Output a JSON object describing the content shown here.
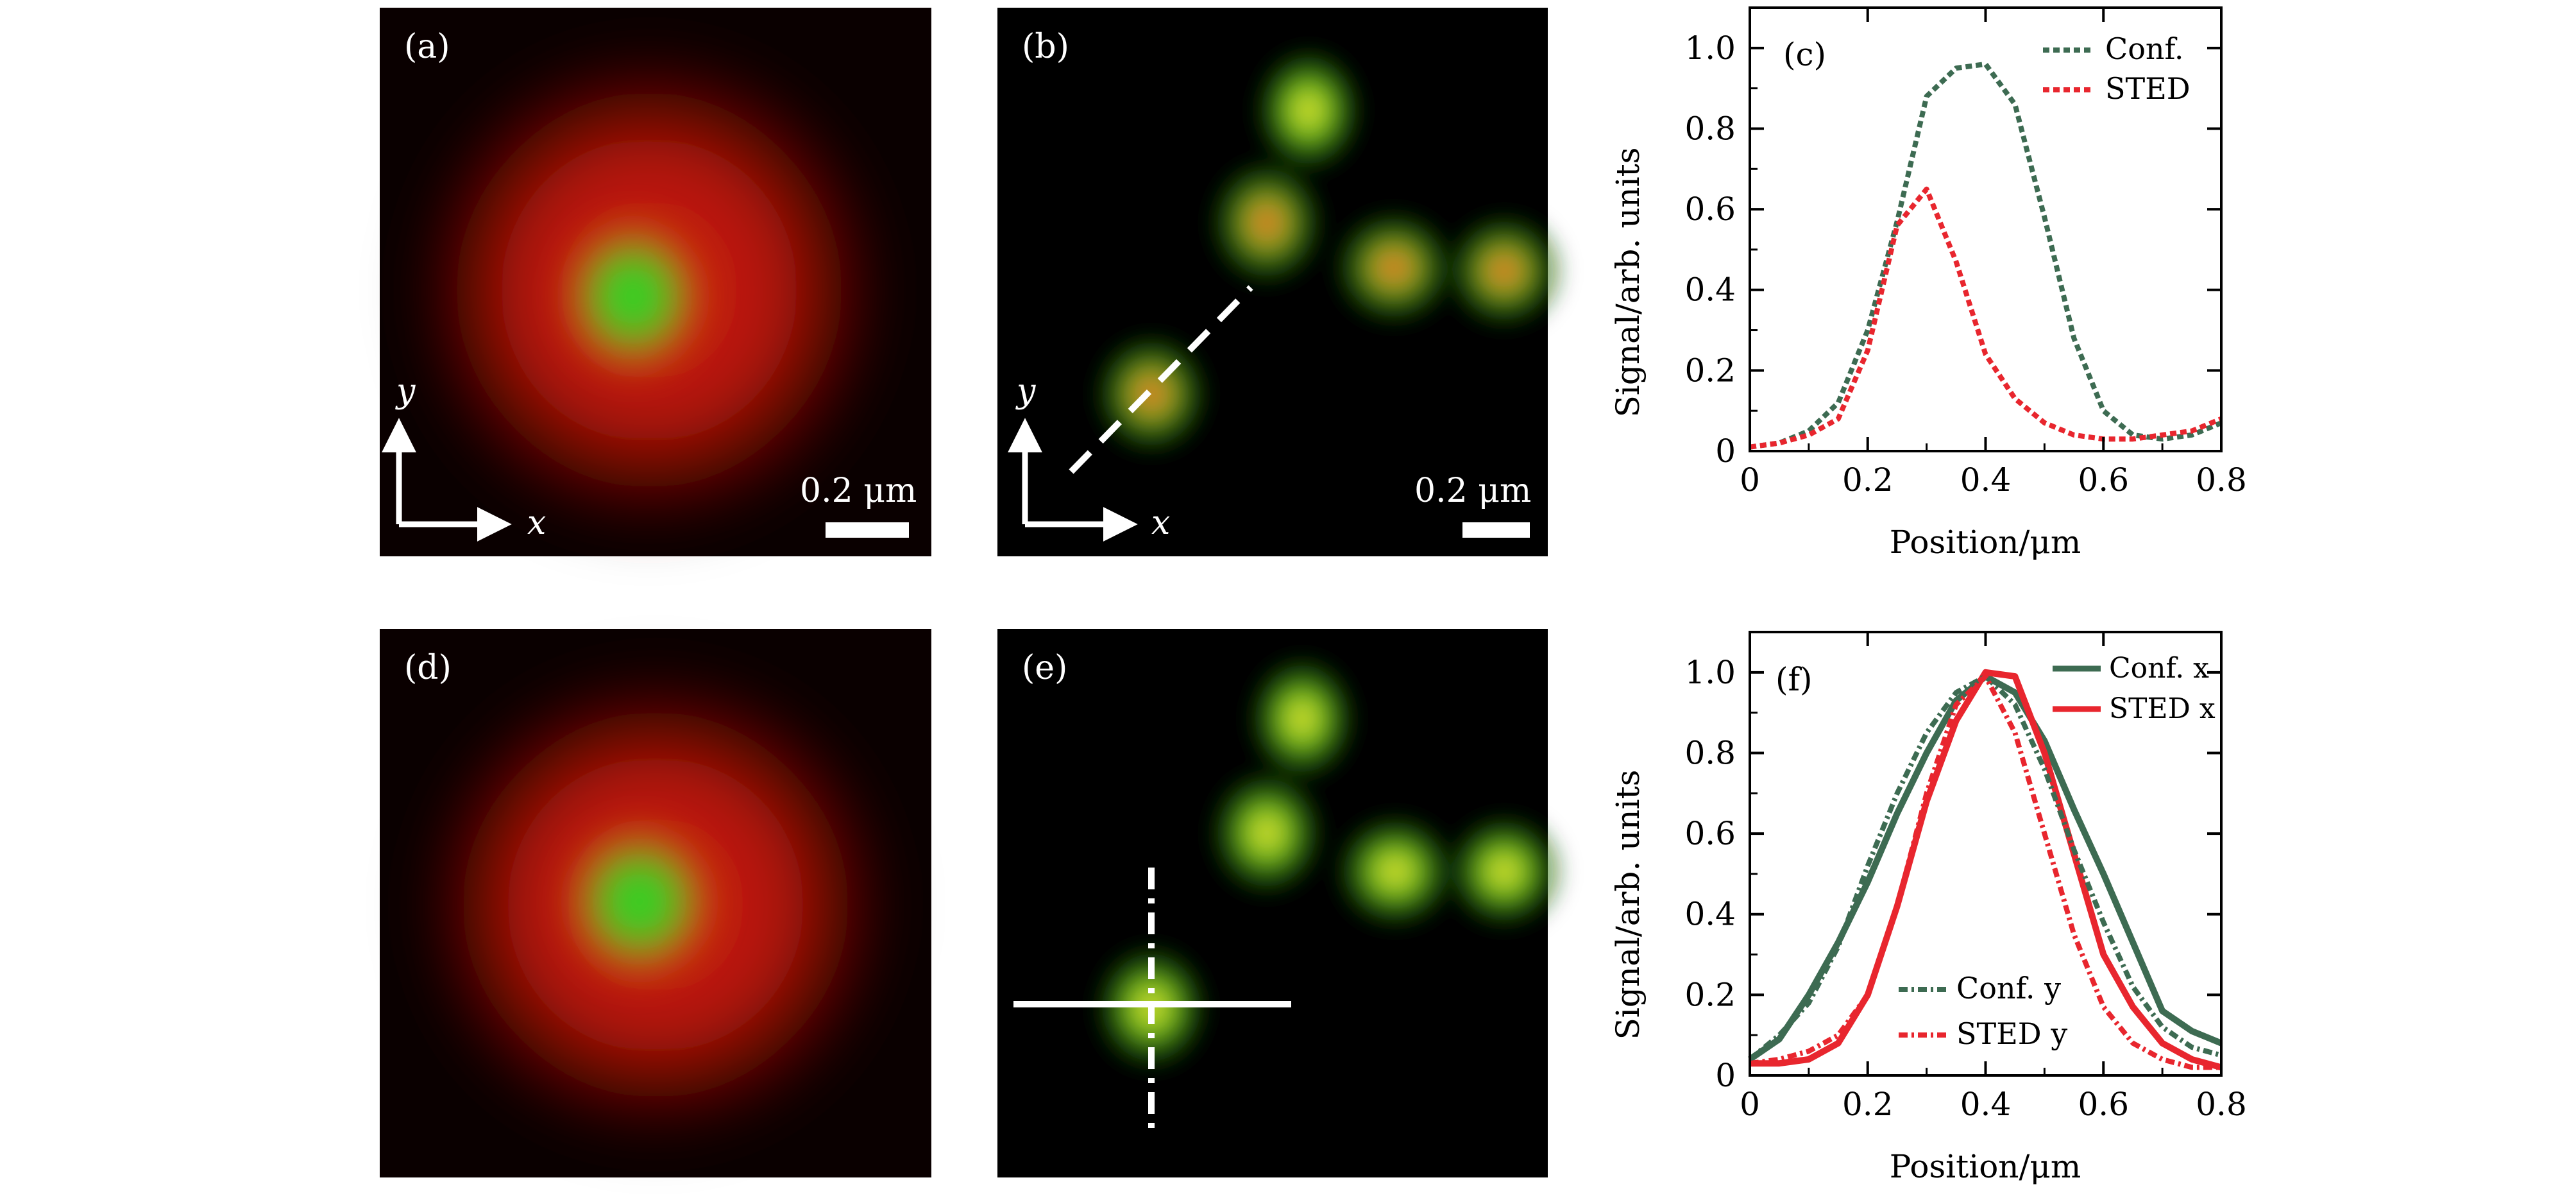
{
  "panels": {
    "a": {
      "label": "(a)",
      "axis_y": "y",
      "axis_x": "x",
      "scalebar": "0.2 μm",
      "green_center": [
        0.45,
        0.56
      ],
      "red_halo": true
    },
    "b": {
      "label": "(b)",
      "axis_y": "y",
      "axis_x": "x",
      "scalebar": "0.2 μm",
      "profile_line": "dashed"
    },
    "d": {
      "label": "(d)",
      "green_center": [
        0.47,
        0.5
      ],
      "red_halo": true
    },
    "e": {
      "label": "(e)",
      "profile_line": "crosshair"
    }
  },
  "chart_data": [
    {
      "panel": "c",
      "type": "line",
      "label": "(c)",
      "xlabel": "Position/μm",
      "ylabel": "Signal/arb. units",
      "xlim": [
        0,
        0.8
      ],
      "ylim": [
        0,
        1.1
      ],
      "xticks": [
        0,
        0.2,
        0.4,
        0.6,
        0.8
      ],
      "yticks": [
        0,
        0.2,
        0.4,
        0.6,
        0.8,
        1.0
      ],
      "xtick_labels": [
        "0",
        "0.2",
        "0.4",
        "0.6",
        "0.8"
      ],
      "ytick_labels": [
        "0",
        "0.2",
        "0.4",
        "0.6",
        "0.8",
        "1.0"
      ],
      "legend_position": "top-right",
      "series": [
        {
          "name": "Conf.",
          "color": "#3d6b52",
          "dash": "dotted",
          "x": [
            0,
            0.05,
            0.1,
            0.15,
            0.2,
            0.25,
            0.3,
            0.35,
            0.4,
            0.45,
            0.5,
            0.55,
            0.6,
            0.65,
            0.7,
            0.75,
            0.8
          ],
          "y": [
            0.01,
            0.02,
            0.05,
            0.12,
            0.3,
            0.57,
            0.88,
            0.95,
            0.96,
            0.86,
            0.58,
            0.28,
            0.1,
            0.04,
            0.03,
            0.04,
            0.07
          ]
        },
        {
          "name": "STED",
          "color": "#e8262e",
          "dash": "dotted",
          "x": [
            0,
            0.05,
            0.1,
            0.15,
            0.2,
            0.25,
            0.3,
            0.35,
            0.4,
            0.45,
            0.5,
            0.55,
            0.6,
            0.65,
            0.7,
            0.75,
            0.8
          ],
          "y": [
            0.01,
            0.02,
            0.04,
            0.08,
            0.25,
            0.56,
            0.65,
            0.47,
            0.24,
            0.13,
            0.07,
            0.04,
            0.03,
            0.03,
            0.04,
            0.05,
            0.08
          ]
        }
      ]
    },
    {
      "panel": "f",
      "type": "line",
      "label": "(f)",
      "xlabel": "Position/μm",
      "ylabel": "Signal/arb. units",
      "xlim": [
        0,
        0.8
      ],
      "ylim": [
        0,
        1.1
      ],
      "xticks": [
        0,
        0.2,
        0.4,
        0.6,
        0.8
      ],
      "yticks": [
        0,
        0.2,
        0.4,
        0.6,
        0.8,
        1.0
      ],
      "xtick_labels": [
        "0",
        "0.2",
        "0.4",
        "0.6",
        "0.8"
      ],
      "ytick_labels": [
        "0",
        "0.2",
        "0.4",
        "0.6",
        "0.8",
        "1.0"
      ],
      "legend_top": [
        {
          "name": "Conf. x",
          "color": "#3d6b52",
          "dash": "solid"
        },
        {
          "name": "STED x",
          "color": "#e8262e",
          "dash": "solid"
        }
      ],
      "legend_bottom": [
        {
          "name": "Conf. y",
          "color": "#3d6b52",
          "dash": "dashdot"
        },
        {
          "name": "STED y",
          "color": "#e8262e",
          "dash": "dashdot"
        }
      ],
      "series": [
        {
          "name": "Conf. x",
          "color": "#3d6b52",
          "dash": "solid",
          "x": [
            0,
            0.05,
            0.1,
            0.15,
            0.2,
            0.25,
            0.3,
            0.35,
            0.4,
            0.45,
            0.5,
            0.55,
            0.6,
            0.65,
            0.7,
            0.75,
            0.8
          ],
          "y": [
            0.04,
            0.09,
            0.2,
            0.33,
            0.48,
            0.65,
            0.8,
            0.93,
            0.99,
            0.95,
            0.83,
            0.66,
            0.5,
            0.33,
            0.16,
            0.11,
            0.08
          ]
        },
        {
          "name": "STED x",
          "color": "#e8262e",
          "dash": "solid",
          "x": [
            0,
            0.05,
            0.1,
            0.15,
            0.2,
            0.25,
            0.3,
            0.35,
            0.4,
            0.45,
            0.5,
            0.55,
            0.6,
            0.65,
            0.7,
            0.75,
            0.8
          ],
          "y": [
            0.03,
            0.03,
            0.04,
            0.08,
            0.2,
            0.42,
            0.68,
            0.88,
            1.0,
            0.99,
            0.8,
            0.55,
            0.3,
            0.17,
            0.08,
            0.04,
            0.02
          ]
        },
        {
          "name": "Conf. y",
          "color": "#3d6b52",
          "dash": "dashdot",
          "x": [
            0,
            0.05,
            0.1,
            0.15,
            0.2,
            0.25,
            0.3,
            0.35,
            0.4,
            0.45,
            0.5,
            0.55,
            0.6,
            0.65,
            0.7,
            0.75,
            0.8
          ],
          "y": [
            0.04,
            0.1,
            0.18,
            0.32,
            0.52,
            0.7,
            0.85,
            0.95,
            0.99,
            0.92,
            0.76,
            0.56,
            0.38,
            0.22,
            0.12,
            0.07,
            0.05
          ]
        },
        {
          "name": "STED y",
          "color": "#e8262e",
          "dash": "dashdot",
          "x": [
            0,
            0.05,
            0.1,
            0.15,
            0.2,
            0.25,
            0.3,
            0.35,
            0.4,
            0.45,
            0.5,
            0.55,
            0.6,
            0.65,
            0.7,
            0.75,
            0.8
          ],
          "y": [
            0.03,
            0.04,
            0.06,
            0.1,
            0.2,
            0.42,
            0.7,
            0.92,
            0.99,
            0.85,
            0.6,
            0.35,
            0.17,
            0.08,
            0.04,
            0.02,
            0.02
          ]
        }
      ]
    }
  ]
}
